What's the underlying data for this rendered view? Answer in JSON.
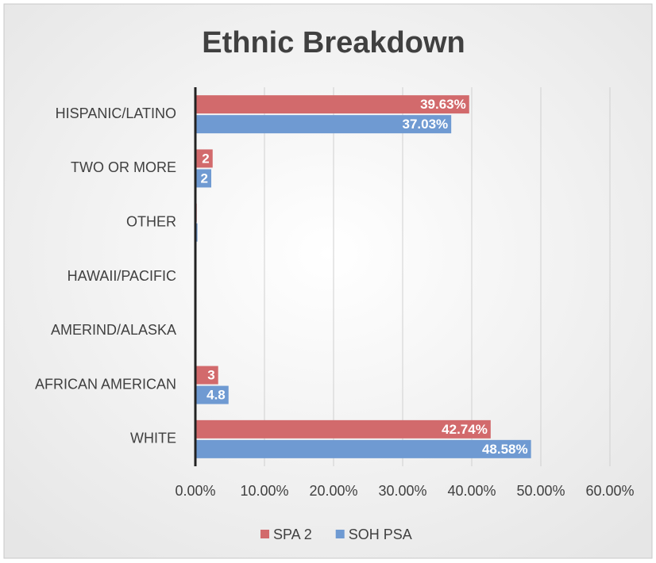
{
  "chart_data": {
    "type": "bar",
    "orientation": "horizontal",
    "title": "Ethnic Breakdown",
    "categories": [
      "HISPANIC/LATINO",
      "TWO OR MORE",
      "OTHER",
      "HAWAII/PACIFIC",
      "AMERIND/ALASKA",
      "AFRICAN AMERICAN",
      "WHITE"
    ],
    "series": [
      {
        "name": "SPA 2",
        "color": "#d26a6c",
        "values": [
          39.63,
          2.5,
          0.2,
          0.1,
          0.1,
          3.3,
          42.74
        ],
        "value_labels": [
          "39.63%",
          "2",
          null,
          null,
          null,
          "3",
          "42.74%"
        ]
      },
      {
        "name": "SOH PSA",
        "color": "#6f9ad2",
        "values": [
          37.03,
          2.3,
          0.3,
          0.1,
          0.1,
          4.8,
          48.58
        ],
        "value_labels": [
          "37.03%",
          "2",
          null,
          null,
          null,
          "4.8",
          "48.58%"
        ]
      }
    ],
    "xlim": [
      0,
      60
    ],
    "xticks": [
      {
        "value": 0,
        "label": "0.00%"
      },
      {
        "value": 10,
        "label": "10.00%"
      },
      {
        "value": 20,
        "label": "20.00%"
      },
      {
        "value": 30,
        "label": "30.00%"
      },
      {
        "value": 40,
        "label": "40.00%"
      },
      {
        "value": 50,
        "label": "50.00%"
      },
      {
        "value": 60,
        "label": "60.00%"
      }
    ],
    "grid": true,
    "legend": "bottom"
  }
}
